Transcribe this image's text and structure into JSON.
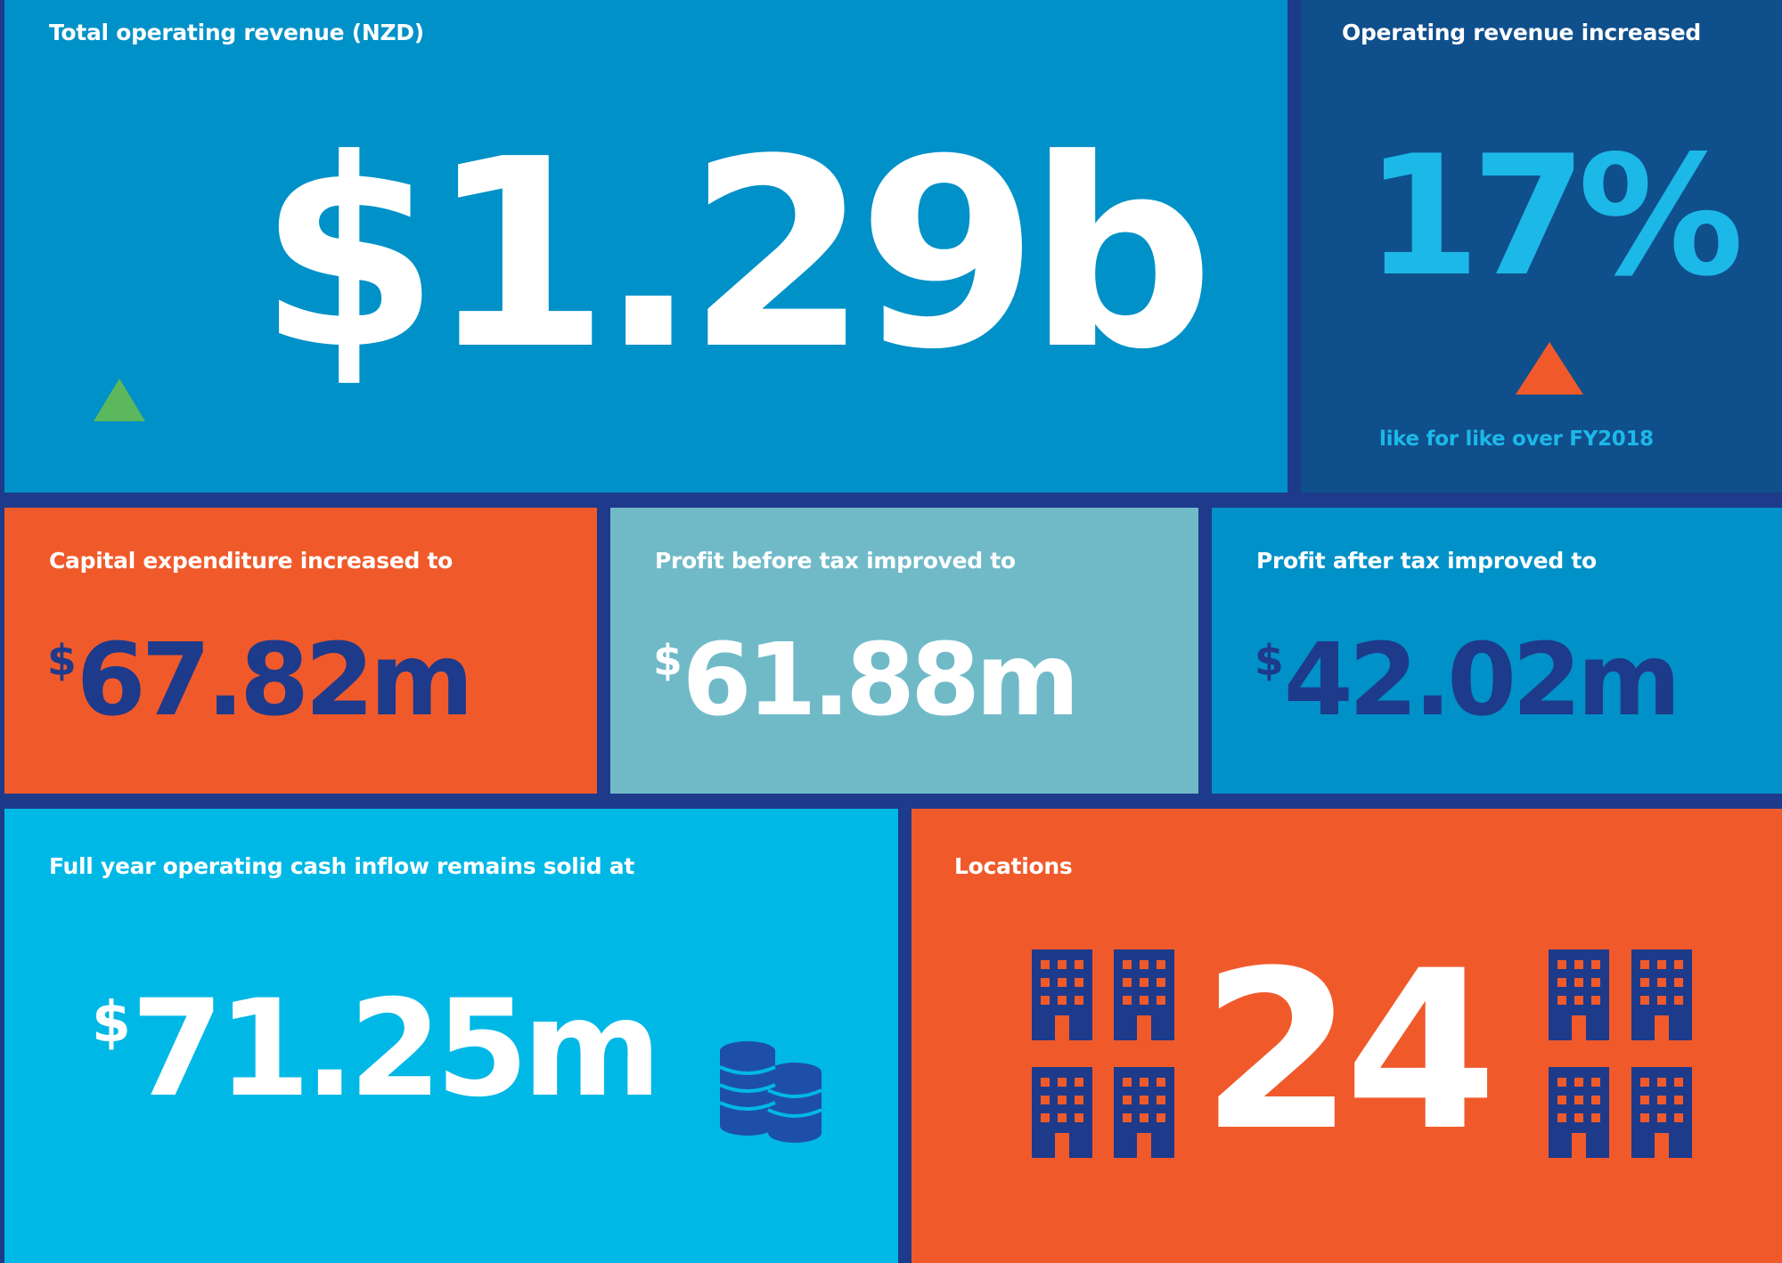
{
  "colors": {
    "frame": "#1e3a8a",
    "blue": "#0091c8",
    "navy_tile": "#0f4f8c",
    "orange": "#f05a2b",
    "teal": "#70bac8",
    "cyan": "#00b8e6",
    "dark_text": "#1e3a8a",
    "light_cyan_text": "#1cb8e8",
    "green_arrow": "#5cb85c",
    "orange_arrow": "#f05a2b",
    "white": "#ffffff"
  },
  "revenue": {
    "label": "Total operating revenue (NZD)",
    "value": "$1.29b",
    "trend_icon": "green-up-triangle-icon"
  },
  "increase": {
    "label": "Operating revenue increased",
    "value": "17%",
    "trend_icon": "orange-up-triangle-icon",
    "note": "like for like over FY2018"
  },
  "capex": {
    "label": "Capital expenditure increased to",
    "currency": "$",
    "value": "67.82m"
  },
  "pbt": {
    "label": "Profit before tax improved to",
    "currency": "$",
    "value": "61.88m"
  },
  "pat": {
    "label": "Profit after tax improved to",
    "currency": "$",
    "value": "42.02m"
  },
  "cash": {
    "label": "Full year operating cash inflow remains solid at",
    "currency": "$",
    "value": "71.25m",
    "icon": "coin-stack-icon"
  },
  "locations": {
    "label": "Locations",
    "value": "24",
    "icon": "building-icon"
  }
}
